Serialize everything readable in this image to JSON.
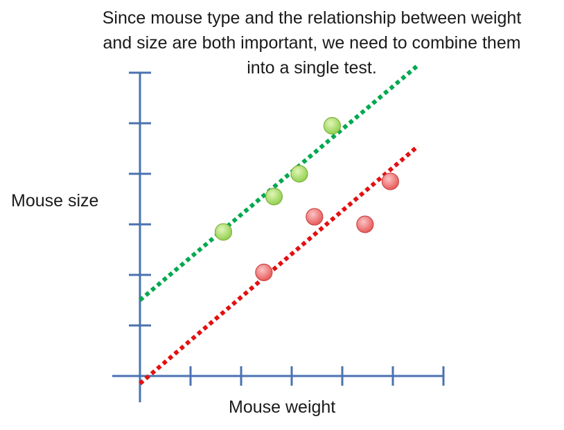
{
  "chart_data": {
    "type": "scatter",
    "title_lines": [
      "Since mouse type and the relationship between weight",
      "and size are both important, we need to combine them",
      "into a single test."
    ],
    "xlabel": "Mouse weight",
    "ylabel": "Mouse size",
    "xlim": [
      0,
      6
    ],
    "ylim": [
      0,
      6
    ],
    "x_ticks": [
      1,
      2,
      3,
      4,
      5,
      6
    ],
    "y_ticks": [
      1,
      2,
      3,
      4,
      5,
      6
    ],
    "grid": false,
    "series": [
      {
        "color": "#92d050",
        "points": [
          {
            "x": 1.65,
            "y": 2.85
          },
          {
            "x": 2.65,
            "y": 3.55
          },
          {
            "x": 3.15,
            "y": 4.0
          },
          {
            "x": 3.8,
            "y": 4.95
          }
        ],
        "trend_line": {
          "x": [
            0,
            5.5
          ],
          "y": [
            1.5,
            6.15
          ],
          "color": "#00a84f",
          "style": "dotted"
        }
      },
      {
        "color": "#f26b6b",
        "points": [
          {
            "x": 2.45,
            "y": 2.05
          },
          {
            "x": 3.45,
            "y": 3.15
          },
          {
            "x": 4.45,
            "y": 3.0
          },
          {
            "x": 4.95,
            "y": 3.85
          }
        ],
        "trend_line": {
          "x": [
            0,
            5.5
          ],
          "y": [
            -0.15,
            4.55
          ],
          "color": "#e31010",
          "style": "dotted"
        }
      }
    ]
  }
}
